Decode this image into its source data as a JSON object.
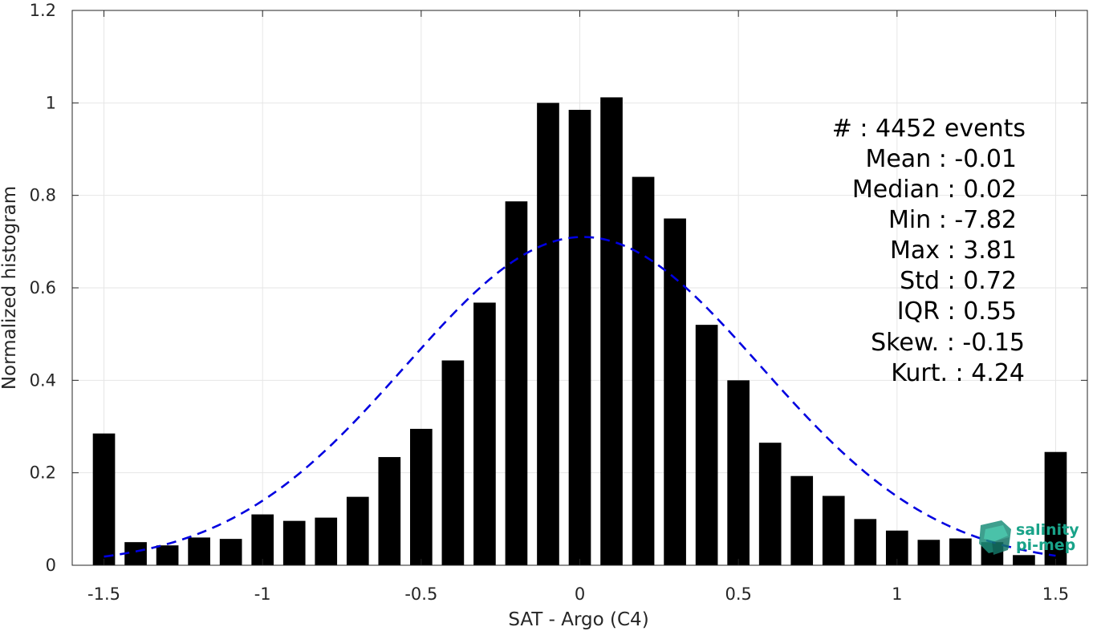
{
  "chart_data": {
    "type": "bar",
    "xlabel": "SAT - Argo (C4)",
    "ylabel": "Normalized histogram",
    "xlim": [
      -1.6,
      1.6
    ],
    "ylim": [
      0,
      1.2
    ],
    "xticks": [
      -1.5,
      -1,
      -0.5,
      0,
      0.5,
      1,
      1.5
    ],
    "xtick_labels": [
      "-1.5",
      "-1",
      "-0.5",
      "0",
      "0.5",
      "1",
      "1.5"
    ],
    "yticks": [
      0,
      0.2,
      0.4,
      0.6,
      0.8,
      1,
      1.2
    ],
    "ytick_labels": [
      "0",
      "0.2",
      "0.4",
      "0.6",
      "0.8",
      "1",
      "1.2"
    ],
    "grid": true,
    "bar_width": 0.07,
    "x": [
      -1.5,
      -1.4,
      -1.3,
      -1.2,
      -1.1,
      -1.0,
      -0.9,
      -0.8,
      -0.7,
      -0.6,
      -0.5,
      -0.4,
      -0.3,
      -0.2,
      -0.1,
      0.0,
      0.1,
      0.2,
      0.3,
      0.4,
      0.5,
      0.6,
      0.7,
      0.8,
      0.9,
      1.0,
      1.1,
      1.2,
      1.3,
      1.4,
      1.5
    ],
    "values": [
      0.285,
      0.05,
      0.043,
      0.06,
      0.057,
      0.11,
      0.096,
      0.103,
      0.148,
      0.234,
      0.295,
      0.443,
      0.568,
      0.787,
      1.0,
      0.985,
      1.012,
      0.84,
      0.75,
      0.52,
      0.4,
      0.265,
      0.193,
      0.15,
      0.1,
      0.075,
      0.055,
      0.058,
      0.05,
      0.022,
      0.245
    ],
    "fit_curve": {
      "style": "dashed",
      "color": "#0000e0",
      "mean": 0.01,
      "std": 0.56,
      "peak": 0.71,
      "x_range": [
        -1.5,
        1.5
      ]
    },
    "bar_color": "#000000",
    "annotations": [
      "#  : 4452 events",
      "Mean : -0.01",
      "Median : 0.02",
      "Min : -7.82",
      "Max : 3.81",
      "Std : 0.72",
      "IQR : 0.55",
      "Skew. : -0.15",
      "Kurt. : 4.24"
    ]
  },
  "logo": {
    "line1": "salinity",
    "line2": "pi-mep",
    "color": "#19a389"
  }
}
